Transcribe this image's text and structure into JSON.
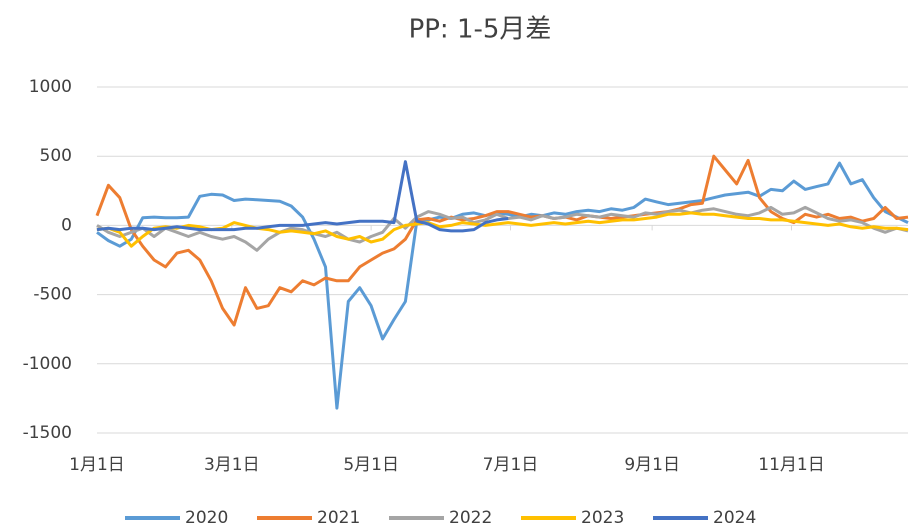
{
  "chart_data": {
    "type": "line",
    "title": "PP: 1-5月差",
    "x": [
      0,
      5,
      10,
      15,
      20,
      25,
      30,
      35,
      40,
      45,
      50,
      55,
      60,
      65,
      70,
      75,
      80,
      85,
      90,
      95,
      100,
      105,
      110,
      115,
      120,
      125,
      130,
      135,
      140,
      145,
      150,
      155,
      160,
      165,
      170,
      175,
      180,
      185,
      190,
      195,
      200,
      205,
      210,
      215,
      220,
      225,
      230,
      235,
      240,
      245,
      250,
      255,
      260,
      265,
      270,
      275,
      280,
      285,
      290,
      295,
      300,
      305,
      310,
      315,
      320,
      325,
      330,
      335,
      340,
      345,
      350,
      355
    ],
    "xlim": [
      0,
      355
    ],
    "xticks": [
      {
        "value": 0,
        "label": "1月1日"
      },
      {
        "value": 59,
        "label": "3月1日"
      },
      {
        "value": 120,
        "label": "5月1日"
      },
      {
        "value": 181,
        "label": "7月1日"
      },
      {
        "value": 243,
        "label": "9月1日"
      },
      {
        "value": 304,
        "label": "11月1日"
      }
    ],
    "ylim": [
      -1500,
      1000
    ],
    "yticks": [
      -1500,
      -1000,
      -500,
      0,
      500,
      1000
    ],
    "grid": true,
    "legend": "bottom",
    "series": [
      {
        "name": "2020",
        "color": "#5b9bd5",
        "values": [
          -50,
          -110,
          -150,
          -100,
          55,
          60,
          55,
          55,
          60,
          210,
          225,
          220,
          180,
          190,
          185,
          180,
          175,
          140,
          60,
          -100,
          -300,
          -1320,
          -550,
          -450,
          -580,
          -820,
          -680,
          -550,
          30,
          40,
          60,
          50,
          80,
          90,
          70,
          90,
          80,
          60,
          80,
          70,
          90,
          80,
          100,
          110,
          100,
          120,
          110,
          130,
          190,
          170,
          150,
          160,
          170,
          180,
          200,
          220,
          230,
          240,
          210,
          260,
          250,
          320,
          260,
          280,
          300,
          450,
          300,
          330,
          200,
          100,
          60,
          20
        ]
      },
      {
        "name": "2021",
        "color": "#ed7d31",
        "values": [
          70,
          290,
          200,
          -30,
          -150,
          -250,
          -300,
          -200,
          -180,
          -250,
          -400,
          -600,
          -720,
          -450,
          -600,
          -580,
          -450,
          -480,
          -400,
          -430,
          -380,
          -400,
          -400,
          -300,
          -250,
          -200,
          -170,
          -100,
          40,
          50,
          30,
          60,
          40,
          50,
          70,
          100,
          100,
          80,
          60,
          70,
          50,
          60,
          40,
          70,
          60,
          50,
          60,
          70,
          80,
          90,
          100,
          120,
          150,
          160,
          500,
          400,
          300,
          470,
          200,
          100,
          50,
          20,
          80,
          60,
          80,
          50,
          60,
          30,
          50,
          130,
          50,
          60
        ]
      },
      {
        "name": "2022",
        "color": "#a5a5a5",
        "values": [
          0,
          -50,
          -80,
          -50,
          -20,
          -80,
          -20,
          -50,
          -80,
          -50,
          -80,
          -100,
          -80,
          -120,
          -180,
          -100,
          -50,
          -20,
          -30,
          -60,
          -80,
          -50,
          -100,
          -120,
          -80,
          -50,
          50,
          -20,
          60,
          100,
          80,
          50,
          60,
          20,
          40,
          80,
          50,
          60,
          40,
          70,
          50,
          60,
          80,
          70,
          60,
          80,
          70,
          60,
          90,
          80,
          100,
          110,
          90,
          110,
          120,
          100,
          80,
          70,
          90,
          130,
          80,
          90,
          130,
          90,
          50,
          30,
          40,
          20,
          -20,
          -50,
          -20,
          -40
        ]
      },
      {
        "name": "2023",
        "color": "#ffc000",
        "values": [
          -30,
          -20,
          -50,
          -150,
          -80,
          -20,
          -10,
          -20,
          0,
          -10,
          -30,
          -20,
          20,
          0,
          -20,
          -30,
          -50,
          -40,
          -50,
          -60,
          -40,
          -80,
          -100,
          -80,
          -120,
          -100,
          -30,
          0,
          10,
          20,
          -10,
          0,
          20,
          10,
          0,
          10,
          20,
          10,
          0,
          10,
          20,
          10,
          20,
          30,
          20,
          30,
          40,
          40,
          50,
          60,
          80,
          80,
          90,
          80,
          80,
          70,
          60,
          50,
          50,
          40,
          40,
          30,
          20,
          10,
          0,
          10,
          -10,
          -20,
          -10,
          -20,
          -20,
          -30
        ]
      },
      {
        "name": "2024",
        "color": "#4472c4",
        "values": [
          -30,
          -20,
          -30,
          -20,
          -20,
          -30,
          -20,
          -10,
          -20,
          -30,
          -30,
          -30,
          -30,
          -20,
          -20,
          -10,
          0,
          0,
          0,
          10,
          20,
          10,
          20,
          30,
          30,
          30,
          20,
          460,
          30,
          10,
          -30,
          -40,
          -40,
          -30,
          20,
          40,
          50,
          null,
          null,
          null,
          null,
          null,
          null,
          null,
          null,
          null,
          null,
          null,
          null,
          null,
          null,
          null,
          null,
          null,
          null,
          null,
          null,
          null,
          null,
          null,
          null,
          null,
          null,
          null,
          null,
          null,
          null,
          null,
          null,
          null,
          null,
          null
        ]
      }
    ]
  }
}
